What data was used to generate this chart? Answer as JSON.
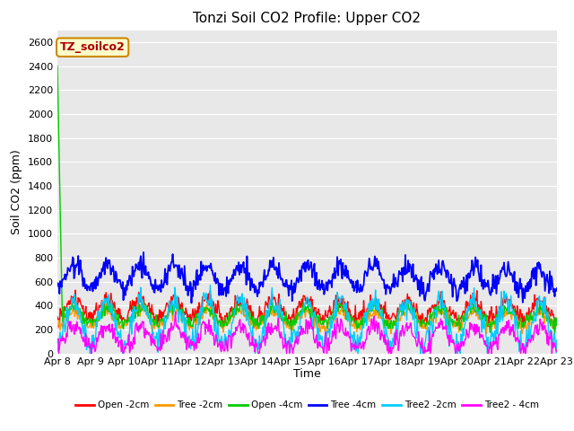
{
  "title": "Tonzi Soil CO2 Profile: Upper CO2",
  "ylabel": "Soil CO2 (ppm)",
  "xlabel": "Time",
  "annotation": "TZ_soilco2",
  "ylim": [
    0,
    2700
  ],
  "yticks": [
    0,
    200,
    400,
    600,
    800,
    1000,
    1200,
    1400,
    1600,
    1800,
    2000,
    2200,
    2400,
    2600
  ],
  "legend_labels": [
    "Open -2cm",
    "Tree -2cm",
    "Open -4cm",
    "Tree -4cm",
    "Tree2 -2cm",
    "Tree2 - 4cm"
  ],
  "legend_colors": [
    "#ff0000",
    "#ff9900",
    "#00cc00",
    "#0000ff",
    "#00ccff",
    "#ff00ff"
  ],
  "bg_color": "#e8e8e8",
  "title_fontsize": 11,
  "axis_label_fontsize": 9,
  "tick_fontsize": 8
}
